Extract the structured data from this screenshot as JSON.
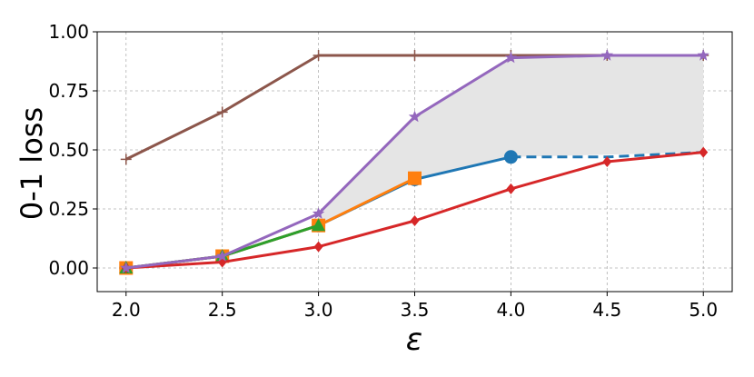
{
  "chart_data": {
    "type": "line",
    "title": "",
    "xlabel": "ε",
    "ylabel": "0-1 loss",
    "xlim": [
      1.85,
      5.15
    ],
    "ylim": [
      -0.1,
      1.0
    ],
    "x_ticks": [
      2.0,
      2.5,
      3.0,
      3.5,
      4.0,
      4.5,
      5.0
    ],
    "x_tick_labels": [
      "2.0",
      "2.5",
      "3.0",
      "3.5",
      "4.0",
      "4.5",
      "5.0"
    ],
    "y_ticks": [
      0.0,
      0.25,
      0.5,
      0.75,
      1.0
    ],
    "y_tick_labels": [
      "0.00",
      "0.25",
      "0.50",
      "0.75",
      "1.00"
    ],
    "grid": true,
    "legend": "none",
    "shaded_region": {
      "fill": "#e5e5e5",
      "upper_x": [
        3.0,
        3.5,
        4.0,
        4.5,
        5.0
      ],
      "upper_y": [
        0.23,
        0.64,
        0.89,
        0.9,
        0.9
      ],
      "lower_x": [
        3.0,
        3.5,
        4.0,
        5.0
      ],
      "lower_y": [
        0.18,
        0.38,
        0.47,
        0.49
      ]
    },
    "series": [
      {
        "color": "#8c564b",
        "marker": "plus",
        "linestyle": "solid",
        "x": [
          2.0,
          2.5,
          3.0,
          3.5,
          4.0,
          4.5,
          5.0
        ],
        "y": [
          0.46,
          0.66,
          0.9,
          0.9,
          0.9,
          0.9,
          0.9
        ]
      },
      {
        "color": "#1f77b4",
        "marker": "circle",
        "linestyle": "solid",
        "x": [
          2.0,
          2.5,
          3.0,
          3.5,
          4.0
        ],
        "y": [
          0.0,
          0.05,
          0.18,
          0.375,
          0.47
        ]
      },
      {
        "color": "#1f77b4",
        "marker": "none",
        "linestyle": "dashed",
        "x": [
          4.0,
          4.5,
          5.0
        ],
        "y": [
          0.47,
          0.47,
          0.49
        ]
      },
      {
        "color": "#ff7f0e",
        "marker": "square",
        "linestyle": "solid",
        "x": [
          2.0,
          2.5,
          3.0,
          3.5
        ],
        "y": [
          0.0,
          0.05,
          0.18,
          0.38
        ]
      },
      {
        "color": "#2ca02c",
        "marker": "triangle",
        "linestyle": "solid",
        "x": [
          2.0,
          2.5,
          3.0
        ],
        "y": [
          0.0,
          0.05,
          0.18
        ]
      },
      {
        "color": "#d62728",
        "marker": "diamond",
        "linestyle": "solid",
        "x": [
          2.0,
          2.5,
          3.0,
          3.5,
          4.0,
          4.5,
          5.0
        ],
        "y": [
          0.0,
          0.025,
          0.09,
          0.2,
          0.335,
          0.45,
          0.49
        ]
      },
      {
        "color": "#9467bd",
        "marker": "star",
        "linestyle": "solid",
        "x": [
          2.0,
          2.5,
          3.0,
          3.5,
          4.0,
          4.5,
          5.0
        ],
        "y": [
          0.0,
          0.05,
          0.23,
          0.64,
          0.89,
          0.9,
          0.9
        ]
      }
    ]
  }
}
